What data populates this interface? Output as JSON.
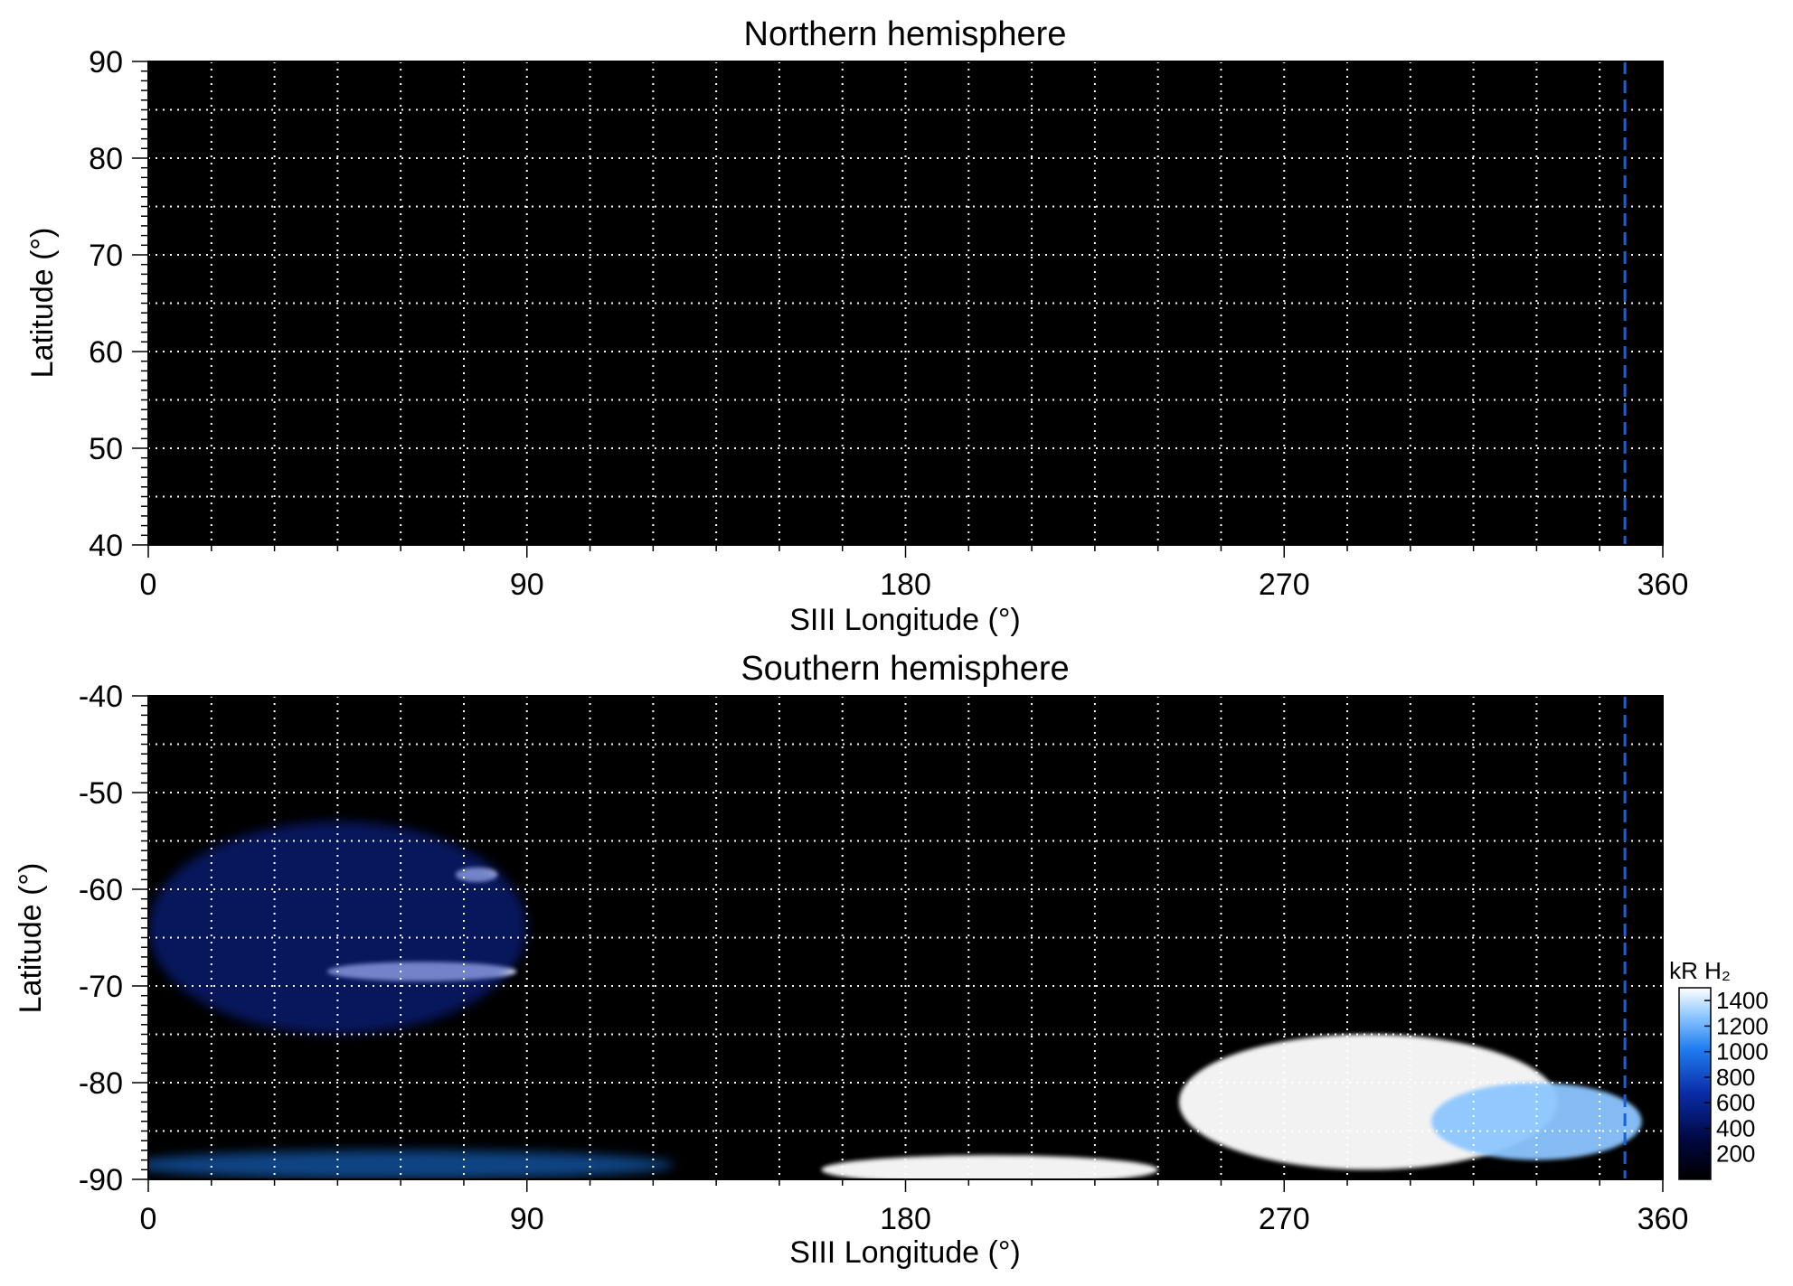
{
  "chart_data": [
    {
      "type": "heatmap",
      "title": "Northern hemisphere",
      "xlabel": "SIII Longitude (°)",
      "ylabel": "Latitude (°)",
      "xlim": [
        0,
        360
      ],
      "ylim": [
        40,
        90
      ],
      "x_ticks": [
        0,
        90,
        180,
        270,
        360
      ],
      "y_ticks": [
        40,
        50,
        60,
        70,
        80,
        90
      ],
      "grid": true,
      "grid_x_step": 15,
      "grid_y_step": 5,
      "background": "#000000",
      "reference_longitude": 351,
      "reference_color": "#1a5fd6",
      "emission_regions": []
    },
    {
      "type": "heatmap",
      "title": "Southern hemisphere",
      "xlabel": "SIII Longitude (°)",
      "ylabel": "Latitude (°)",
      "xlim": [
        0,
        360
      ],
      "ylim": [
        -90,
        -40
      ],
      "x_ticks": [
        0,
        90,
        180,
        270,
        360
      ],
      "y_ticks": [
        -40,
        -50,
        -60,
        -70,
        -80,
        -90
      ],
      "grid": true,
      "grid_x_step": 15,
      "grid_y_step": 5,
      "background": "#000000",
      "reference_longitude": 351,
      "reference_color": "#1a5fd6",
      "emission_regions": [
        {
          "lon": 78,
          "lat": -58.5,
          "lon_width": 10,
          "lat_width": 1.5,
          "intensity": 1400
        },
        {
          "lon": 65,
          "lat": -68.5,
          "lon_width": 45,
          "lat_width": 2,
          "intensity": 1200
        },
        {
          "lon": 45,
          "lat": -64,
          "lon_width": 90,
          "lat_width": 22,
          "intensity": 300
        },
        {
          "lon": 290,
          "lat": -82,
          "lon_width": 90,
          "lat_width": 14,
          "intensity": 1500
        },
        {
          "lon": 330,
          "lat": -84,
          "lon_width": 50,
          "lat_width": 8,
          "intensity": 1000
        },
        {
          "lon": 200,
          "lat": -89,
          "lon_width": 80,
          "lat_width": 3,
          "intensity": 1500
        },
        {
          "lon": 60,
          "lat": -88.5,
          "lon_width": 130,
          "lat_width": 3,
          "intensity": 700
        }
      ],
      "colorbar": {
        "label": "kR H₂",
        "ticks": [
          200,
          400,
          600,
          800,
          1000,
          1200,
          1400
        ],
        "range": [
          0,
          1500
        ],
        "colors": [
          "#000000",
          "#00073d",
          "#0b2ca8",
          "#1f7df0",
          "#8cc6ff",
          "#ffffff"
        ]
      }
    }
  ]
}
